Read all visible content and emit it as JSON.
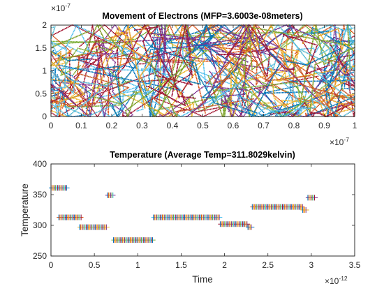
{
  "colors": {
    "series": [
      "#0072BD",
      "#D95319",
      "#EDB120",
      "#7E2F8E",
      "#77AC30",
      "#4DBEEE",
      "#A2142F"
    ],
    "axis": "#262626",
    "background": "#ffffff"
  },
  "chart_data": [
    {
      "type": "scatter",
      "title": "Movement of Electrons (MFP=3.6003e-08meters)",
      "xlabel": "",
      "ylabel": "",
      "xlim": [
        0,
        1e-07
      ],
      "ylim": [
        0,
        2e-07
      ],
      "x_ticks": [
        "0",
        "0.1",
        "0.2",
        "0.3",
        "0.4",
        "0.5",
        "0.6",
        "0.7",
        "0.8",
        "0.9",
        "1"
      ],
      "y_ticks": [
        "0",
        "0.5",
        "1",
        "1.5",
        "2"
      ],
      "x_exponent": "×10",
      "x_exponent_power": "-7",
      "y_exponent": "×10",
      "y_exponent_power": "-7",
      "grid": false,
      "description_of_series": "dense multi-coloured trajectories of many electrons filling the 100nm x 200nm region",
      "trajectories": 7
    },
    {
      "type": "scatter",
      "title": "Temperature (Average Temp=311.8029kelvin)",
      "xlabel": "Time",
      "ylabel": "Temperature",
      "xlim": [
        0,
        3.5e-12
      ],
      "ylim": [
        250,
        400
      ],
      "x_ticks": [
        "0",
        "0.5",
        "1",
        "1.5",
        "2",
        "2.5",
        "3",
        "3.5"
      ],
      "y_ticks": [
        "250",
        "300",
        "350",
        "400"
      ],
      "x_exponent": "×10",
      "x_exponent_power": "-12",
      "grid": false,
      "segments": [
        {
          "x_start": 0.0,
          "x_end": 1.9e-13,
          "y": 361
        },
        {
          "x_start": 9e-14,
          "x_end": 3.5e-13,
          "y": 313
        },
        {
          "x_start": 3.3e-13,
          "x_end": 6.5e-13,
          "y": 297
        },
        {
          "x_start": 6.5e-13,
          "x_end": 7.2e-13,
          "y": 349
        },
        {
          "x_start": 7.2e-13,
          "x_end": 1.18e-12,
          "y": 276
        },
        {
          "x_start": 1.18e-12,
          "x_end": 1.95e-12,
          "y": 313
        },
        {
          "x_start": 1.95e-12,
          "x_end": 2.27e-12,
          "y": 302
        },
        {
          "x_start": 2.27e-12,
          "x_end": 2.32e-12,
          "y": 297
        },
        {
          "x_start": 2.32e-12,
          "x_end": 2.9e-12,
          "y": 330
        },
        {
          "x_start": 2.9e-12,
          "x_end": 2.95e-12,
          "y": 325
        },
        {
          "x_start": 2.96e-12,
          "x_end": 3.05e-12,
          "y": 345
        }
      ]
    }
  ]
}
